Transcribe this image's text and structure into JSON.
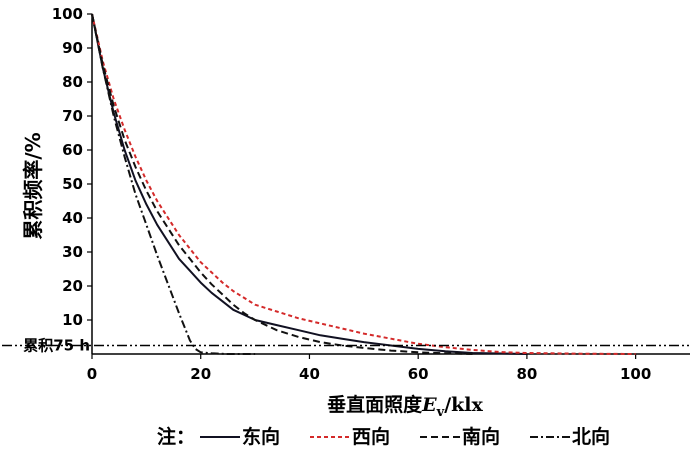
{
  "chart_data": {
    "type": "line",
    "xlabel": "垂直面照度",
    "xlabel_var": "E",
    "xlabel_sub": "v",
    "xlabel_unit": "/klx",
    "ylabel": "累积频率/%",
    "xlim": [
      0,
      110
    ],
    "ylim": [
      0,
      100
    ],
    "xticks": [
      0,
      20,
      40,
      60,
      80,
      100
    ],
    "yticks": [
      10,
      20,
      30,
      40,
      50,
      60,
      70,
      80,
      90,
      100
    ],
    "grid": false,
    "reference_line": {
      "y": 2.5,
      "label": "累积75 h"
    },
    "legend": {
      "prefix": "注：",
      "placement": "bottom"
    },
    "series": [
      {
        "name": "东向",
        "color": "#111122",
        "dash": "solid",
        "x": [
          0,
          2,
          4,
          6,
          8,
          10,
          12,
          14,
          16,
          18,
          20,
          22,
          24,
          26,
          28,
          30,
          34,
          38,
          42,
          46,
          50,
          55,
          60,
          65,
          70,
          80
        ],
        "y": [
          100,
          84,
          71,
          60,
          51,
          44,
          38,
          33,
          28,
          24.5,
          21,
          18,
          15.5,
          13,
          11.5,
          10,
          8.5,
          7,
          5.5,
          4.5,
          3.5,
          2.5,
          1.5,
          0.8,
          0.3,
          0
        ]
      },
      {
        "name": "西向",
        "color": "#d42a2a",
        "dash": "4,3",
        "x": [
          0,
          2,
          4,
          6,
          8,
          10,
          12,
          14,
          16,
          18,
          20,
          22,
          24,
          26,
          28,
          30,
          34,
          38,
          42,
          46,
          50,
          55,
          60,
          65,
          70,
          75,
          80,
          90,
          100
        ],
        "y": [
          100,
          86,
          75,
          66,
          58,
          51,
          45,
          40,
          35,
          31,
          27,
          24,
          21,
          18.5,
          16.5,
          14.5,
          12.5,
          10.5,
          9,
          7.5,
          6,
          4.5,
          3,
          2,
          1.2,
          0.6,
          0.3,
          0.1,
          0
        ]
      },
      {
        "name": "南向",
        "color": "#111111",
        "dash": "7,4",
        "x": [
          0,
          2,
          4,
          6,
          8,
          10,
          12,
          14,
          16,
          18,
          20,
          22,
          24,
          26,
          28,
          30,
          34,
          38,
          42,
          46,
          50,
          55,
          60,
          65,
          70
        ],
        "y": [
          100,
          85,
          73,
          63,
          55,
          48,
          42,
          37,
          32,
          28,
          24,
          20.5,
          17.5,
          14.5,
          12,
          10,
          7,
          5,
          3.5,
          2.5,
          1.8,
          1,
          0.5,
          0.2,
          0
        ]
      },
      {
        "name": "北向",
        "color": "#111111",
        "dash": "8,3,2,3",
        "x": [
          0,
          2,
          4,
          6,
          8,
          10,
          12,
          14,
          16,
          18,
          19,
          20,
          22,
          25,
          30
        ],
        "y": [
          100,
          84,
          70,
          58,
          47,
          38,
          29,
          20.5,
          12,
          4,
          1.5,
          0.5,
          0.2,
          0,
          0
        ]
      }
    ]
  }
}
